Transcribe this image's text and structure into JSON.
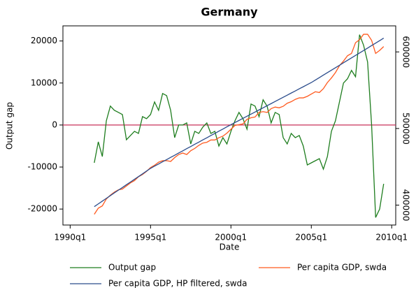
{
  "chart_data": {
    "type": "line",
    "title": "Germany",
    "y_label": "Output gap",
    "x_label": "Date",
    "x": [
      1991.5,
      1991.75,
      1992,
      1992.25,
      1992.5,
      1992.75,
      1993,
      1993.25,
      1993.5,
      1993.75,
      1994,
      1994.25,
      1994.5,
      1994.75,
      1995,
      1995.25,
      1995.5,
      1995.75,
      1996,
      1996.25,
      1996.5,
      1996.75,
      1997,
      1997.25,
      1997.5,
      1997.75,
      1998,
      1998.25,
      1998.5,
      1998.75,
      1999,
      1999.25,
      1999.5,
      1999.75,
      2000,
      2000.25,
      2000.5,
      2000.75,
      2001,
      2001.25,
      2001.5,
      2001.75,
      2002,
      2002.25,
      2002.5,
      2002.75,
      2003,
      2003.25,
      2003.5,
      2003.75,
      2004,
      2004.25,
      2004.5,
      2004.75,
      2005,
      2005.25,
      2005.5,
      2005.75,
      2006,
      2006.25,
      2006.5,
      2006.75,
      2007,
      2007.25,
      2007.5,
      2007.75,
      2008,
      2008.25,
      2008.5,
      2008.75,
      2009,
      2009.25,
      2009.5
    ],
    "series": [
      {
        "name": "Output gap",
        "color": "#1e7d1e",
        "axis": "y",
        "values": [
          -9000,
          -4000,
          -7500,
          1000,
          4500,
          3500,
          3000,
          2500,
          -3500,
          -2500,
          -1500,
          -2000,
          2000,
          1500,
          2500,
          5500,
          3500,
          7500,
          7000,
          3500,
          -3000,
          0,
          0,
          500,
          -4500,
          -1500,
          -2000,
          -500,
          500,
          -2000,
          -1500,
          -5000,
          -3000,
          -4500,
          -1500,
          1000,
          3000,
          1500,
          -1000,
          5000,
          4500,
          2000,
          6000,
          4500,
          500,
          3000,
          2500,
          -3000,
          -4500,
          -2000,
          -3000,
          -2500,
          -5000,
          -9500,
          -9000,
          -8500,
          -8000,
          -10500,
          -7500,
          -1500,
          1000,
          5500,
          10000,
          11000,
          13000,
          11500,
          21500,
          19000,
          15000,
          0,
          -22000,
          -20000,
          -14000
        ]
      },
      {
        "name": "Per capita GDP, swda",
        "color": "#ff5a1f",
        "axis": "y2",
        "values": [
          388000,
          396000,
          399000,
          408000,
          413000,
          417000,
          420000,
          421000,
          425000,
          429000,
          432000,
          437000,
          440000,
          444000,
          449000,
          452000,
          456000,
          458000,
          458000,
          457000,
          462000,
          466000,
          468000,
          466000,
          471000,
          474000,
          478000,
          481000,
          482000,
          485000,
          485000,
          488000,
          490000,
          494000,
          499000,
          504000,
          505000,
          506000,
          512000,
          514000,
          515000,
          521000,
          522000,
          521000,
          526000,
          528000,
          527000,
          529000,
          533000,
          535000,
          538000,
          540000,
          540000,
          542000,
          545000,
          548000,
          547000,
          552000,
          560000,
          566000,
          573000,
          582000,
          588000,
          595000,
          598000,
          612000,
          616000,
          623000,
          623000,
          615000,
          598000,
          602000,
          607000
        ]
      },
      {
        "name": "Per capita GDP, HP filtered, swda",
        "color": "#2b4c8c",
        "axis": "y2",
        "values": [
          398000,
          401600,
          405200,
          408800,
          412400,
          416000,
          419500,
          423000,
          426600,
          430100,
          433700,
          437200,
          440800,
          444400,
          448000,
          450900,
          453700,
          456600,
          459400,
          462300,
          465100,
          468000,
          470800,
          473700,
          476500,
          479400,
          482200,
          485100,
          487900,
          490800,
          493600,
          496500,
          499300,
          502200,
          505000,
          507800,
          510500,
          513300,
          516000,
          518800,
          521500,
          524300,
          527000,
          529800,
          532500,
          535300,
          538000,
          540800,
          543500,
          546300,
          549000,
          551800,
          554500,
          557300,
          560000,
          563200,
          566400,
          569700,
          572900,
          576100,
          579300,
          582500,
          585800,
          589000,
          592200,
          595400,
          598600,
          601800,
          605000,
          608300,
          611500,
          614700,
          618000
        ]
      }
    ],
    "xlim": [
      1989.55,
      2010.25
    ],
    "xticks": [
      {
        "value": 1990,
        "label": "1990q1"
      },
      {
        "value": 1995,
        "label": "1995q1"
      },
      {
        "value": 2000,
        "label": "2000q1"
      },
      {
        "value": 2005,
        "label": "2005q1"
      },
      {
        "value": 2010,
        "label": "2010q1"
      }
    ],
    "ylim": [
      -23800,
      23600
    ],
    "yticks": [
      -20000,
      -10000,
      0,
      10000,
      20000
    ],
    "y2lim": [
      374000,
      634000
    ],
    "y2ticks": [
      400000,
      500000,
      600000
    ],
    "reference_line": 0,
    "reference_color": "#c8325a",
    "legend": "bottom"
  }
}
